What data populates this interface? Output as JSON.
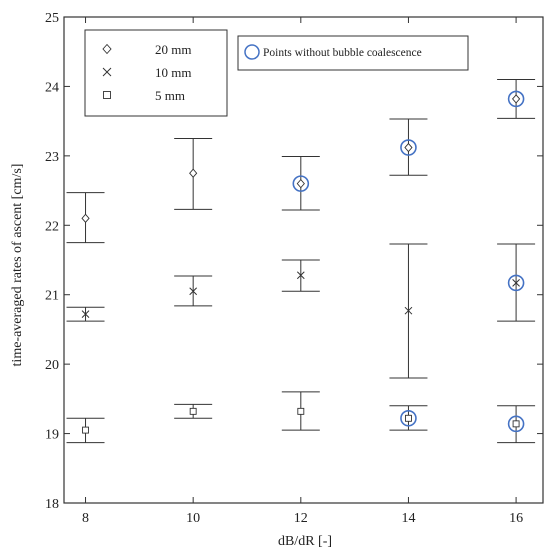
{
  "chart_data": {
    "type": "scatter",
    "xlabel": "dB/dR [-]",
    "ylabel": "time-averaged rates of ascent [cm/s]",
    "xlim": [
      7.6,
      16.5
    ],
    "ylim": [
      18,
      25
    ],
    "xticks": [
      8,
      10,
      12,
      14,
      16
    ],
    "yticks": [
      18,
      19,
      20,
      21,
      22,
      23,
      24,
      25
    ],
    "grid": false,
    "legend": {
      "placement": "top-left",
      "entries": [
        {
          "label": "20 mm",
          "marker": "diamond"
        },
        {
          "label": "10 mm",
          "marker": "x"
        },
        {
          "label": "5 mm",
          "marker": "square"
        }
      ]
    },
    "highlight_legend": {
      "placement": "top-center",
      "label": "Points without bubble coalescence",
      "marker": "circle",
      "color": "#4472C4"
    },
    "series": [
      {
        "name": "20 mm",
        "marker": "diamond",
        "points": [
          {
            "x": 8,
            "y": 22.1,
            "err_low": 21.75,
            "err_high": 22.47,
            "coalescence_free": false
          },
          {
            "x": 10,
            "y": 22.75,
            "err_low": 22.23,
            "err_high": 23.25,
            "coalescence_free": false
          },
          {
            "x": 12,
            "y": 22.6,
            "err_low": 22.22,
            "err_high": 22.99,
            "coalescence_free": true
          },
          {
            "x": 14,
            "y": 23.12,
            "err_low": 22.72,
            "err_high": 23.53,
            "coalescence_free": true
          },
          {
            "x": 16,
            "y": 23.82,
            "err_low": 23.54,
            "err_high": 24.1,
            "coalescence_free": true
          }
        ]
      },
      {
        "name": "10 mm",
        "marker": "x",
        "points": [
          {
            "x": 8,
            "y": 20.72,
            "err_low": 20.62,
            "err_high": 20.82,
            "coalescence_free": false
          },
          {
            "x": 10,
            "y": 21.05,
            "err_low": 20.84,
            "err_high": 21.27,
            "coalescence_free": false
          },
          {
            "x": 12,
            "y": 21.28,
            "err_low": 21.05,
            "err_high": 21.5,
            "coalescence_free": false
          },
          {
            "x": 14,
            "y": 20.77,
            "err_low": 19.8,
            "err_high": 21.73,
            "coalescence_free": false
          },
          {
            "x": 16,
            "y": 21.17,
            "err_low": 20.62,
            "err_high": 21.73,
            "coalescence_free": true
          }
        ]
      },
      {
        "name": "5 mm",
        "marker": "square",
        "points": [
          {
            "x": 8,
            "y": 19.05,
            "err_low": 18.87,
            "err_high": 19.22,
            "coalescence_free": false
          },
          {
            "x": 10,
            "y": 19.32,
            "err_low": 19.22,
            "err_high": 19.42,
            "coalescence_free": false
          },
          {
            "x": 12,
            "y": 19.32,
            "err_low": 19.05,
            "err_high": 19.6,
            "coalescence_free": false
          },
          {
            "x": 14,
            "y": 19.22,
            "err_low": 19.05,
            "err_high": 19.4,
            "coalescence_free": true
          },
          {
            "x": 16,
            "y": 19.14,
            "err_low": 18.87,
            "err_high": 19.4,
            "coalescence_free": true
          }
        ]
      }
    ]
  }
}
